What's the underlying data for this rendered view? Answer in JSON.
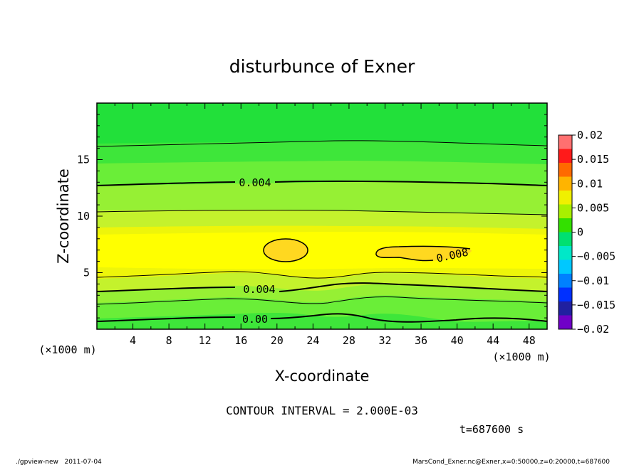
{
  "chart_data": {
    "type": "contour",
    "title": "disturbunce of Exner",
    "xlabel": "X-coordinate",
    "ylabel": "Z-coordinate",
    "x_unit": "(×1000 m)",
    "y_unit": "(×1000 m)",
    "xlim": [
      0,
      50
    ],
    "ylim": [
      0,
      20
    ],
    "x_ticks": [
      4,
      8,
      12,
      16,
      20,
      24,
      28,
      32,
      36,
      40,
      44,
      48
    ],
    "y_ticks": [
      5,
      10,
      15
    ],
    "contour_interval_text": "CONTOUR INTERVAL = 2.000E-03",
    "time_text": "t=687600 s",
    "contour_labels": [
      "0.004",
      "0.004",
      "0.00",
      "0.008"
    ],
    "colorbar": {
      "ticks": [
        "0.02",
        "0.015",
        "0.01",
        "0.005",
        "0",
        "−0.005",
        "−0.01",
        "−0.015",
        "−0.02"
      ],
      "colors": [
        "#ff7070",
        "#ff1a1a",
        "#ff6a00",
        "#ffb400",
        "#f0f000",
        "#a8f000",
        "#33e000",
        "#00e070",
        "#00e8c8",
        "#00c8ff",
        "#0080ff",
        "#0030ff",
        "#2020a0",
        "#7000c8"
      ]
    },
    "bands": {
      "note_colors": [
        "#22e03a",
        "#3ee63a",
        "#6aee38",
        "#96f034",
        "#c4f22c",
        "#eef50a",
        "#ffff00",
        "#ffd820"
      ]
    }
  },
  "footer": {
    "left": "./gpview-new   2011-07-04",
    "right": "MarsCond_Exner.nc@Exner,x=0:50000,z=0:20000,t=687600"
  }
}
